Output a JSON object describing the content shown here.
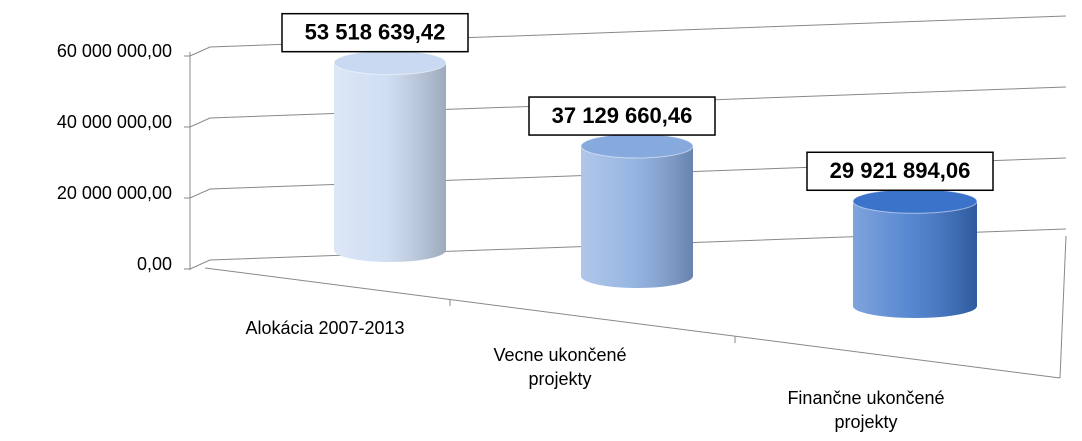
{
  "chart_data": {
    "type": "bar3d",
    "categories": [
      "Alokácia 2007-2013",
      "Vecne ukončené projekty",
      "Finančne ukončené projekty"
    ],
    "values": [
      53518639.42,
      37129660.46,
      29921894.06
    ],
    "value_labels": [
      "53 518 639,42",
      "37 129 660,46",
      "29 921 894,06"
    ],
    "colors": [
      "#c9d9f1",
      "#86a9de",
      "#3a73c9"
    ],
    "ylim": [
      0,
      60000000
    ],
    "yticks": [
      {
        "value": 0,
        "label": "0,00"
      },
      {
        "value": 20000000,
        "label": "20 000 000,00"
      },
      {
        "value": 40000000,
        "label": "40 000 000,00"
      },
      {
        "value": 60000000,
        "label": "60 000 000,00"
      }
    ],
    "grid": true
  }
}
